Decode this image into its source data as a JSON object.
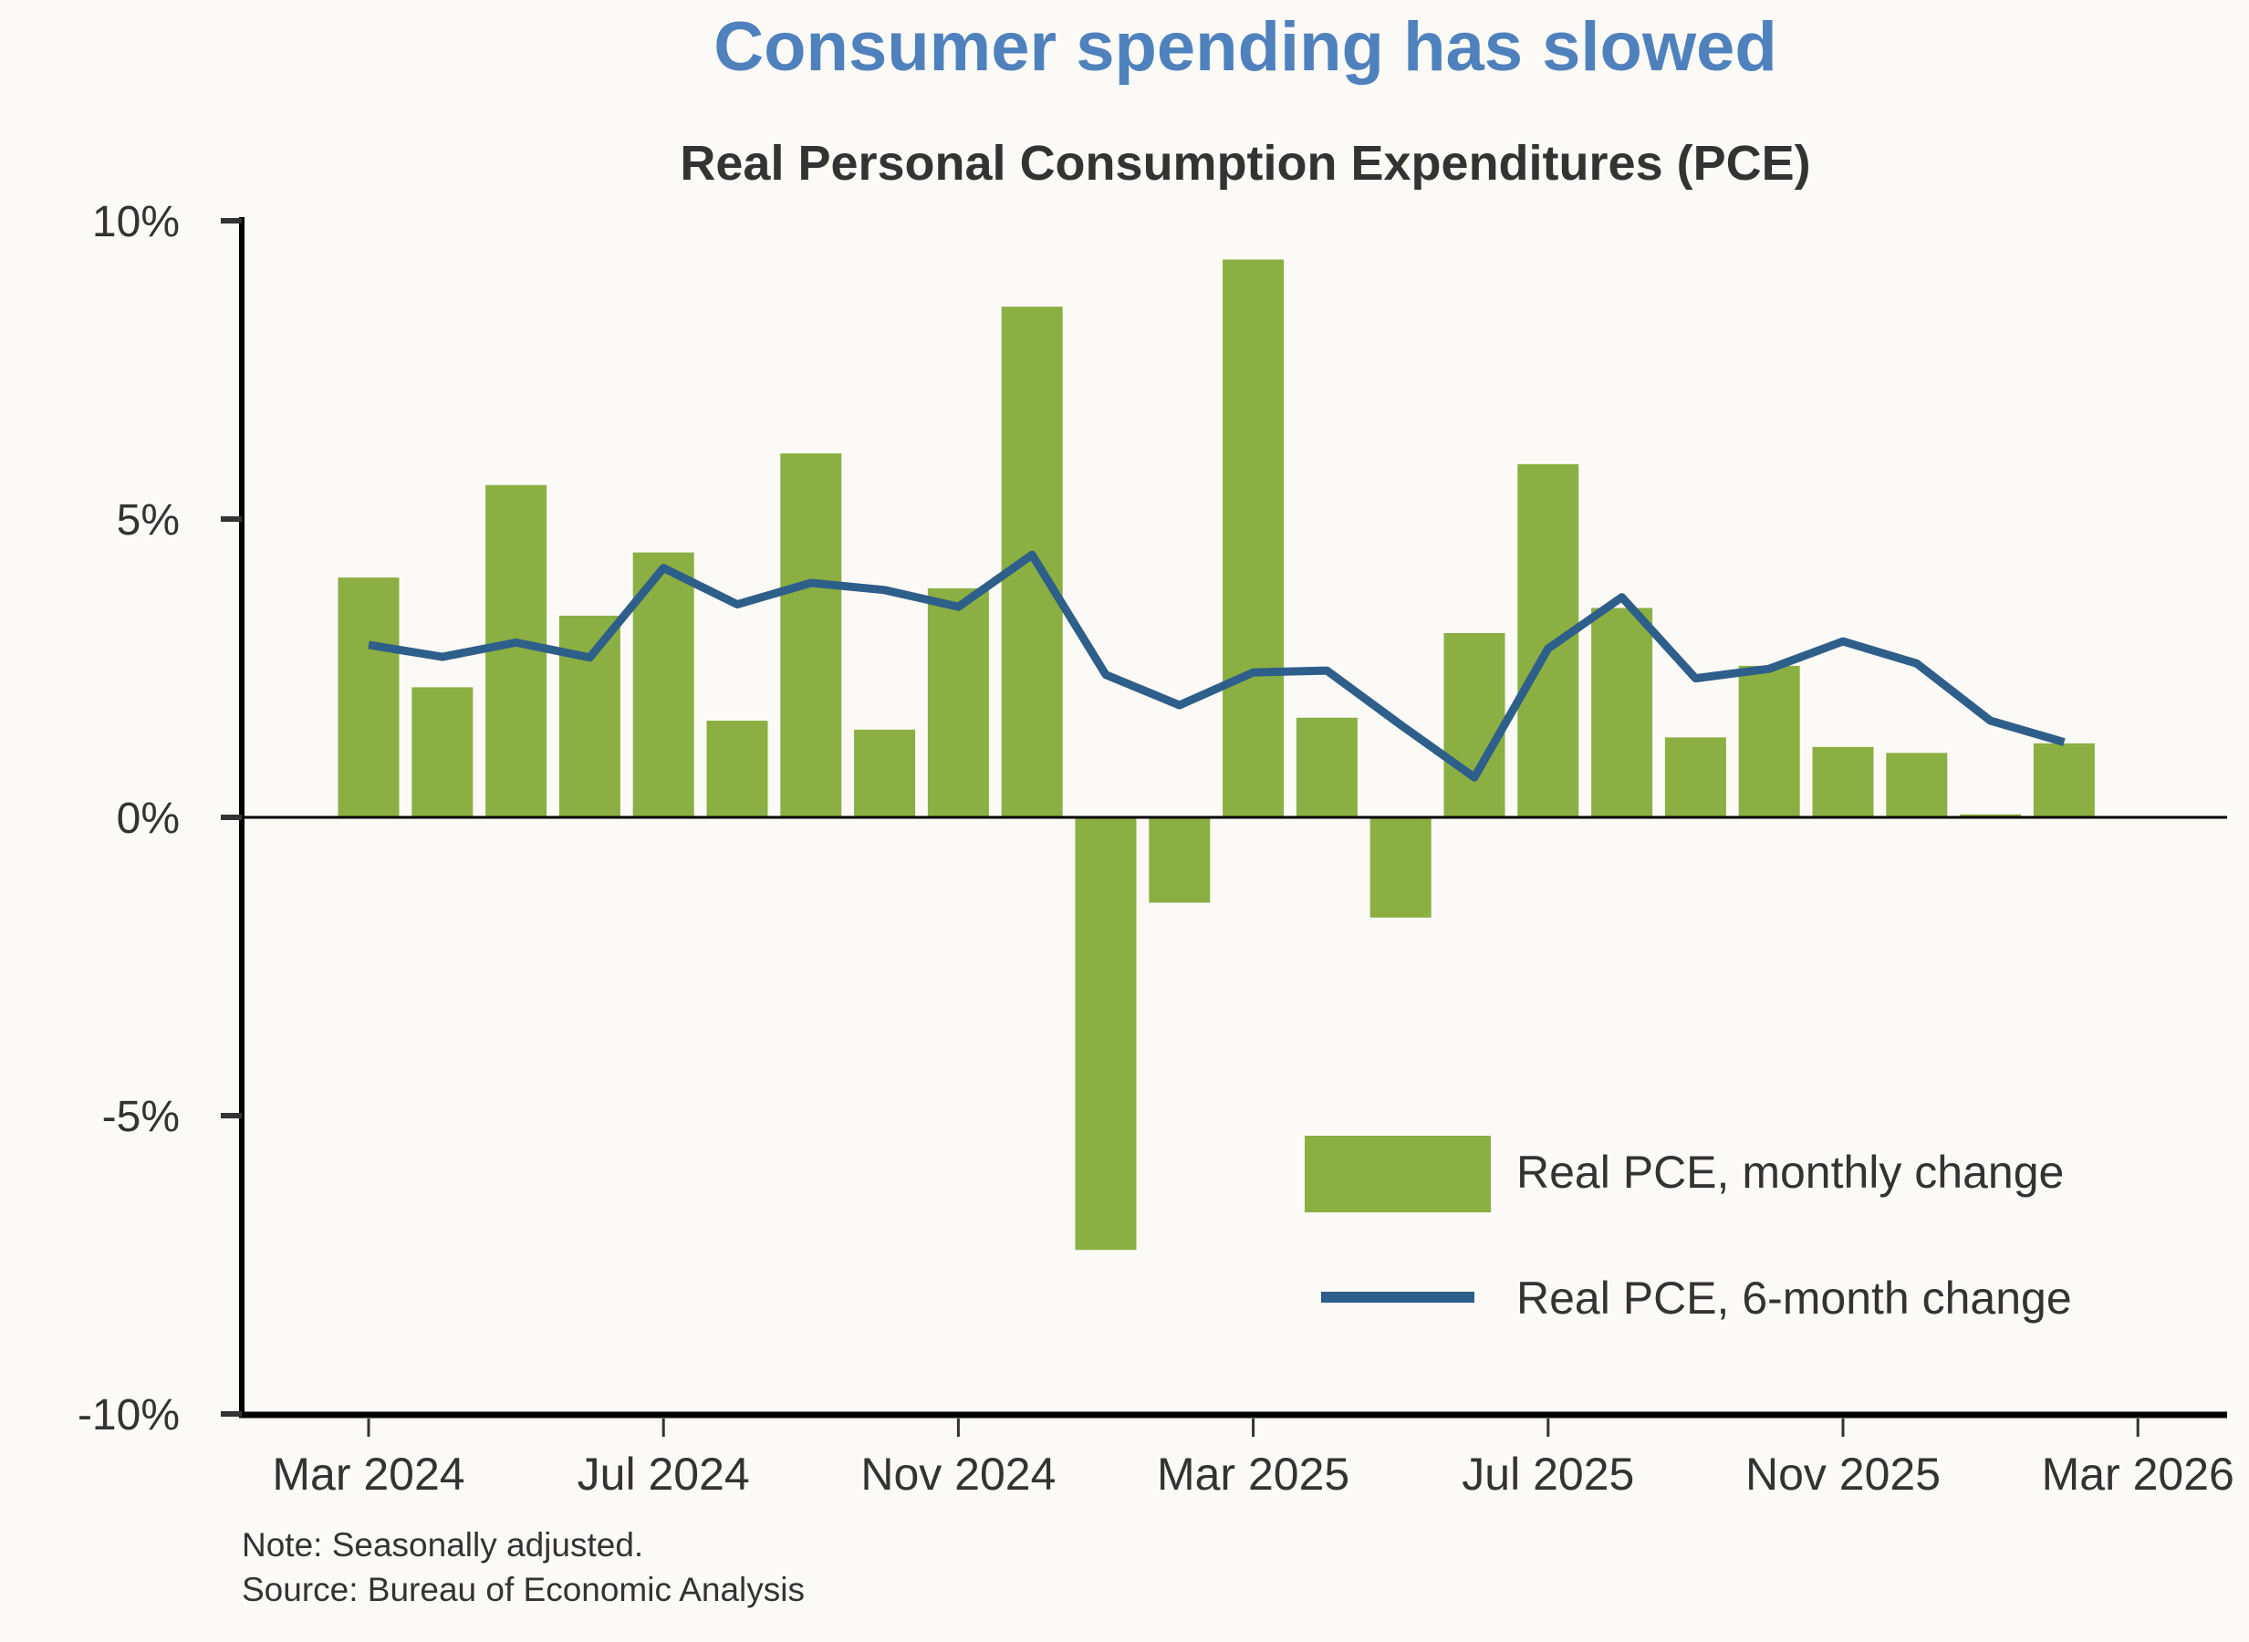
{
  "chart_data": {
    "type": "bar",
    "title": "Consumer spending has slowed",
    "subtitle": "Real Personal Consumption Expenditures (PCE)",
    "xlabel": "",
    "ylabel": "",
    "ylim": [
      -10,
      10
    ],
    "yticks": [
      10,
      5,
      0,
      -5,
      -10
    ],
    "ytick_labels": [
      "10%",
      "5%",
      "0%",
      "-5%",
      "-10%"
    ],
    "xtick_labels": [
      "Mar 2024",
      "Jul 2024",
      "Nov 2024",
      "Mar 2025",
      "Jul 2025",
      "Nov 2025",
      "Mar 2026"
    ],
    "xtick_indices": [
      0,
      4,
      8,
      12,
      16,
      20,
      24
    ],
    "categories": [
      "Mar 2024",
      "Apr 2024",
      "May 2024",
      "Jun 2024",
      "Jul 2024",
      "Aug 2024",
      "Sep 2024",
      "Oct 2024",
      "Nov 2024",
      "Dec 2024",
      "Jan 2025",
      "Feb 2025",
      "Mar 2025",
      "Apr 2025",
      "May 2025",
      "Jun 2025",
      "Jul 2025",
      "Aug 2025",
      "Sep 2025",
      "Oct 2025",
      "Nov 2025",
      "Dec 2025",
      "Jan 2026",
      "Feb 2026"
    ],
    "series": [
      {
        "name": "Real PCE, monthly change",
        "type": "bar",
        "color": "#8BAF42",
        "values": [
          4.02,
          2.18,
          5.57,
          3.38,
          4.44,
          1.62,
          6.1,
          1.47,
          3.84,
          8.56,
          -7.25,
          -1.43,
          9.35,
          1.67,
          -1.68,
          3.09,
          5.92,
          3.51,
          1.34,
          2.54,
          1.18,
          1.08,
          0.05,
          1.24
        ]
      },
      {
        "name": "Real PCE, 6-month change",
        "type": "line",
        "color": "#2E5E8A",
        "values": [
          2.89,
          2.69,
          2.93,
          2.68,
          4.18,
          3.57,
          3.93,
          3.81,
          3.53,
          4.4,
          2.39,
          1.88,
          2.43,
          2.46,
          1.55,
          0.67,
          2.83,
          3.69,
          2.33,
          2.49,
          2.95,
          2.58,
          1.62,
          1.26
        ]
      }
    ],
    "grid": false,
    "legend_position": "bottom-right",
    "notes": [
      "Note: Seasonally adjusted.",
      "Source: Bureau of Economic Analysis"
    ]
  }
}
